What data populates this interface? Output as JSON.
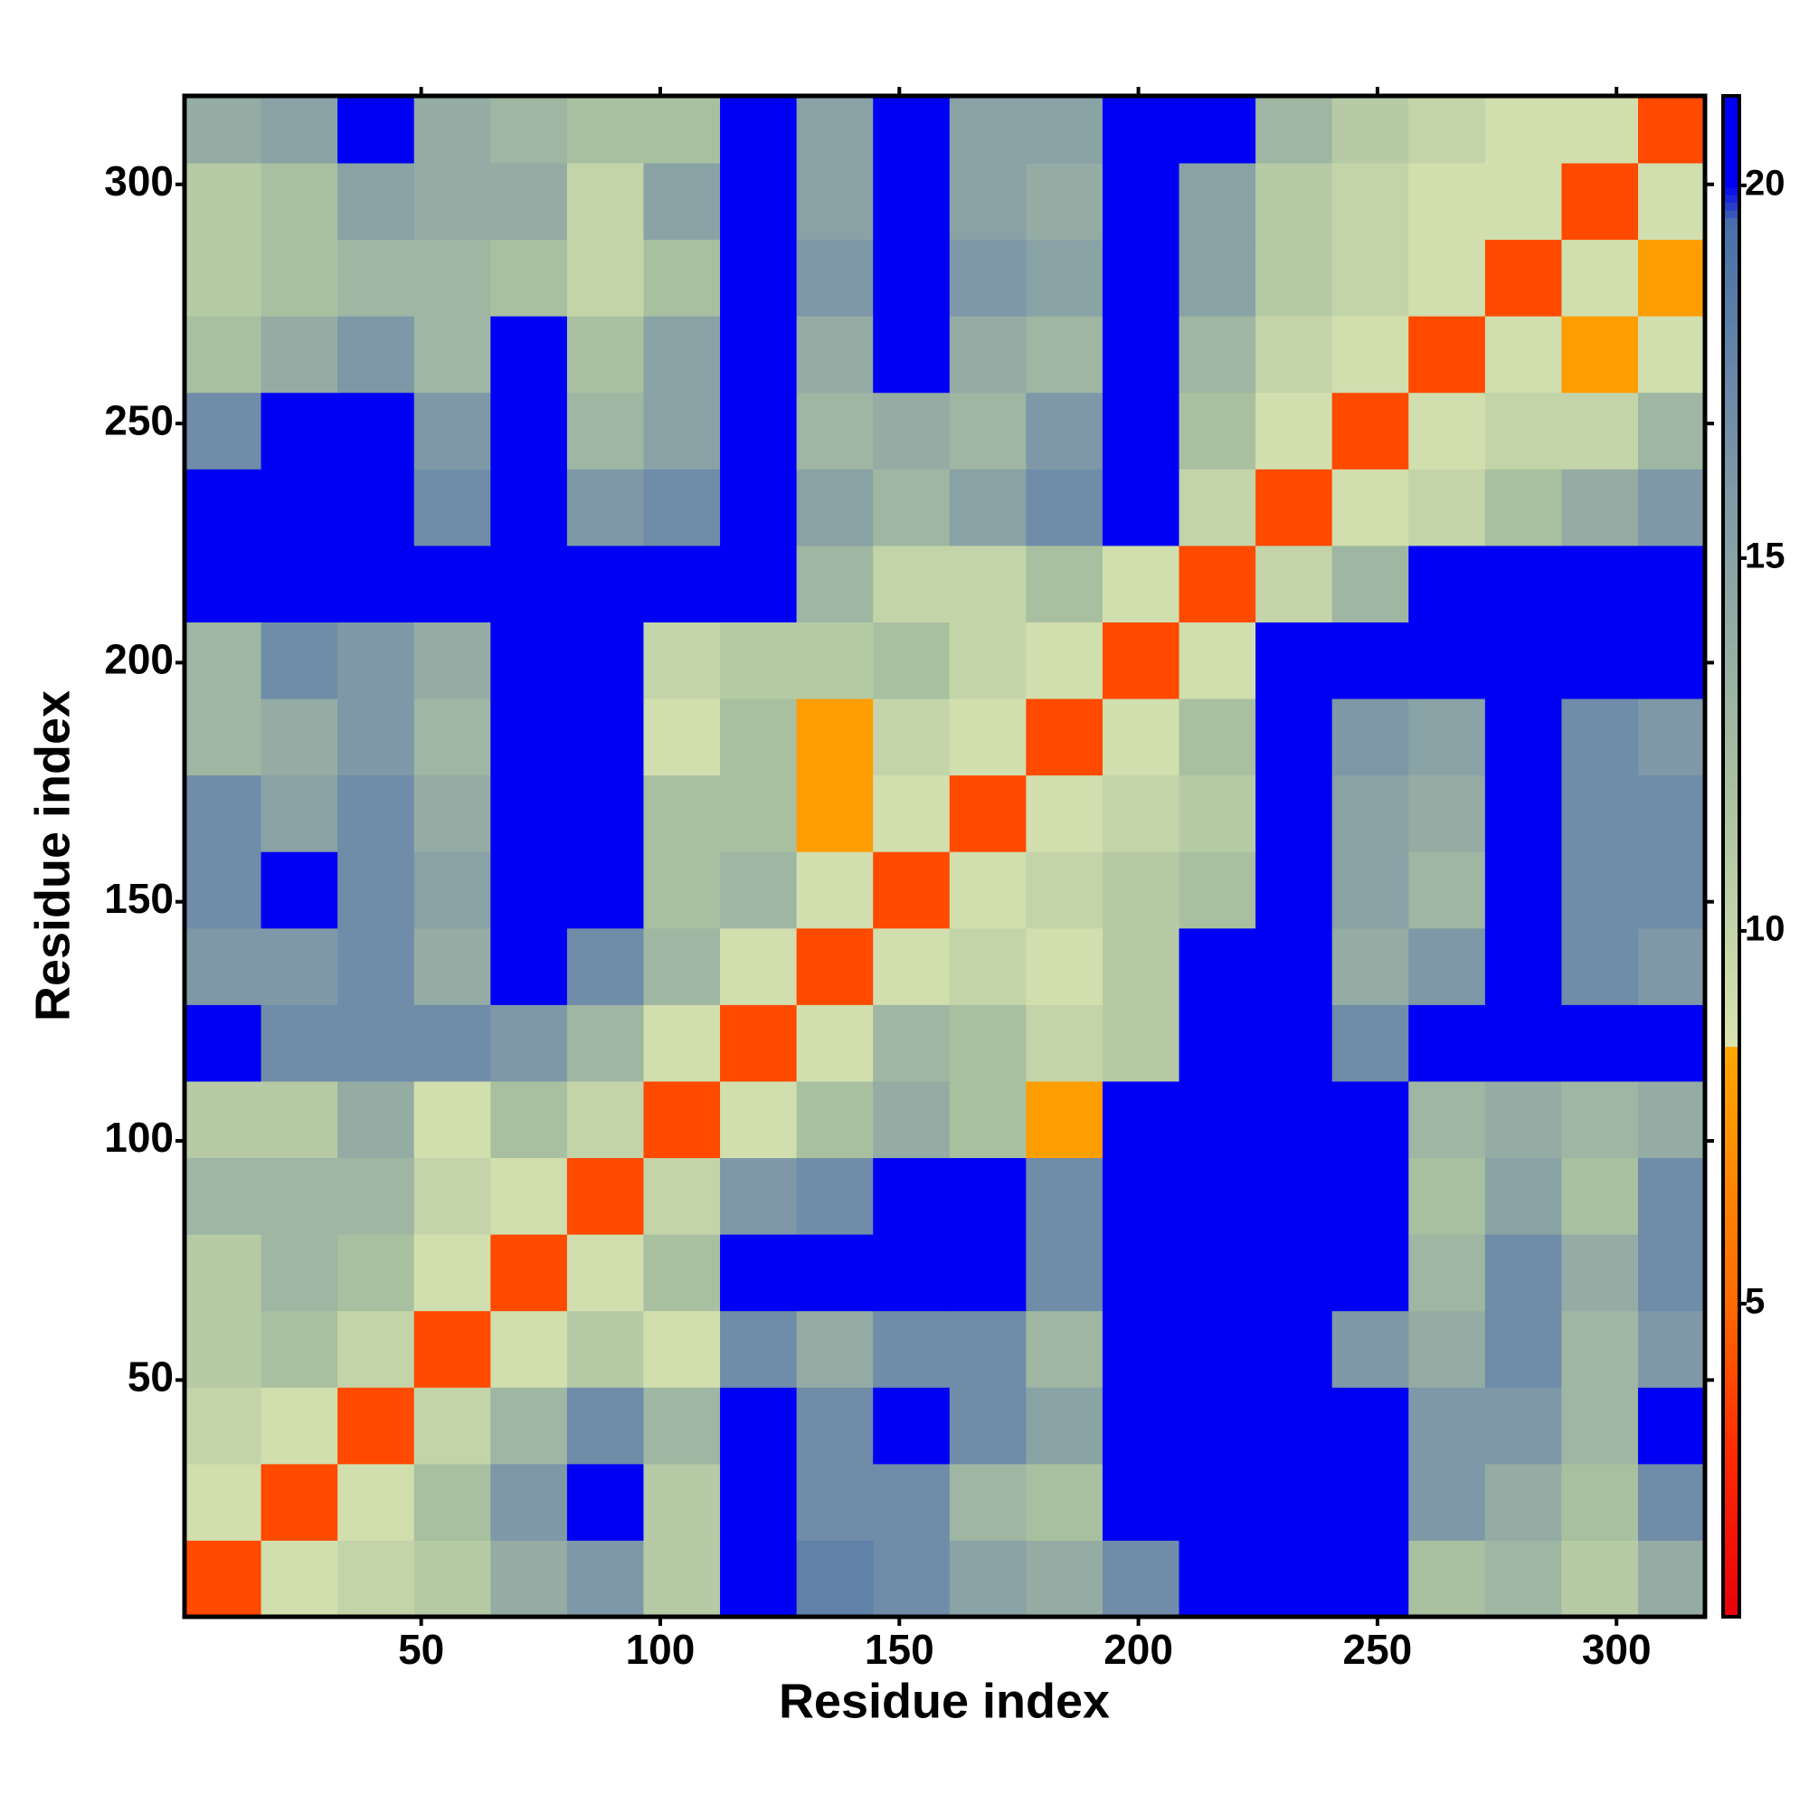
{
  "chart_data": {
    "type": "heatmap",
    "x_label": "Residue index",
    "y_label": "Residue index",
    "x_edges": [
      0.5,
      16.5,
      32.5,
      48.5,
      64.5,
      80.5,
      96.5,
      112.5,
      128.5,
      144.5,
      160.5,
      176.5,
      192.5,
      208.5,
      224.5,
      240.5,
      256.5,
      272.5,
      288.5,
      304.5,
      318.5
    ],
    "y_edges": [
      0.5,
      16.5,
      32.5,
      48.5,
      64.5,
      80.5,
      96.5,
      112.5,
      128.5,
      144.5,
      160.5,
      176.5,
      192.5,
      208.5,
      224.5,
      240.5,
      256.5,
      272.5,
      288.5,
      304.5,
      318.5
    ],
    "xlim": [
      0.5,
      318.5
    ],
    "ylim": [
      0.5,
      318.5
    ],
    "xticks": [
      50,
      100,
      150,
      200,
      250,
      300
    ],
    "yticks": [
      50,
      100,
      150,
      200,
      250,
      300
    ],
    "z": [
      [
        4,
        9,
        10,
        11,
        14,
        16,
        11,
        21,
        18,
        17,
        15,
        14,
        17,
        21,
        21,
        21,
        12,
        13,
        11,
        14
      ],
      [
        9,
        4,
        9,
        12,
        16,
        21,
        11,
        21,
        17,
        17,
        13,
        12,
        21,
        21,
        21,
        21,
        16,
        14,
        12,
        17
      ],
      [
        10,
        9,
        4,
        10,
        13,
        17,
        13,
        21,
        17,
        21,
        17,
        15,
        21,
        21,
        21,
        21,
        16,
        16,
        13,
        21
      ],
      [
        11,
        12,
        10,
        4,
        9,
        11,
        9,
        17,
        14,
        17,
        17,
        13,
        21,
        21,
        21,
        16,
        14,
        17,
        13,
        16
      ],
      [
        11,
        13,
        12,
        9,
        4,
        9,
        12,
        21,
        21,
        21,
        21,
        17,
        21,
        21,
        21,
        21,
        13,
        17,
        14,
        17
      ],
      [
        13,
        13,
        13,
        10,
        9,
        4,
        10,
        16,
        17,
        21,
        21,
        17,
        21,
        21,
        21,
        21,
        12,
        15,
        12,
        17
      ],
      [
        11,
        11,
        14,
        9,
        12,
        10,
        4,
        9,
        12,
        14,
        12,
        8,
        21,
        21,
        21,
        21,
        13,
        14,
        13,
        14
      ],
      [
        21,
        17,
        17,
        17,
        16,
        13,
        9,
        4,
        9,
        13,
        12,
        10,
        11,
        21,
        21,
        17,
        21,
        21,
        21,
        21
      ],
      [
        16,
        16,
        17,
        14,
        21,
        17,
        13,
        9,
        4,
        9,
        10,
        9,
        11,
        21,
        21,
        14,
        16,
        21,
        17,
        16
      ],
      [
        17,
        21,
        17,
        15,
        21,
        21,
        12,
        13,
        9,
        4,
        9,
        10,
        11,
        12,
        21,
        15,
        13,
        21,
        17,
        17
      ],
      [
        17,
        15,
        17,
        14,
        21,
        21,
        12,
        12,
        8,
        9,
        4,
        9,
        10,
        11,
        21,
        15,
        14,
        21,
        17,
        17
      ],
      [
        13,
        14,
        16,
        13,
        21,
        21,
        9,
        12,
        8,
        10,
        9,
        4,
        9,
        12,
        21,
        16,
        15,
        21,
        17,
        16
      ],
      [
        13,
        17,
        16,
        14,
        21,
        21,
        10,
        11,
        11,
        12,
        10,
        9,
        4,
        9,
        21,
        21,
        21,
        21,
        21,
        21
      ],
      [
        21,
        21,
        21,
        21,
        21,
        21,
        21,
        21,
        13,
        10,
        10,
        12,
        9,
        4,
        10,
        13,
        21,
        21,
        21,
        21
      ],
      [
        21,
        21,
        21,
        17,
        21,
        16,
        17,
        21,
        15,
        13,
        15,
        17,
        21,
        10,
        4,
        9,
        10,
        12,
        14,
        16
      ],
      [
        17,
        21,
        21,
        16,
        21,
        13,
        15,
        21,
        13,
        14,
        13,
        16,
        21,
        12,
        9,
        4,
        9,
        10,
        10,
        13
      ],
      [
        12,
        14,
        16,
        13,
        21,
        12,
        15,
        21,
        14,
        21,
        14,
        13,
        21,
        13,
        10,
        9,
        4,
        9,
        8,
        9
      ],
      [
        11,
        12,
        13,
        13,
        12,
        10,
        12,
        21,
        16,
        21,
        16,
        15,
        21,
        15,
        11,
        10,
        9,
        4,
        9,
        8
      ],
      [
        11,
        12,
        15,
        14,
        14,
        10,
        15,
        21,
        15,
        21,
        15,
        14,
        21,
        15,
        11,
        10,
        9,
        9,
        4,
        9
      ],
      [
        14,
        15,
        21,
        14,
        13,
        12,
        12,
        21,
        15,
        21,
        15,
        15,
        21,
        21,
        13,
        11,
        10,
        9,
        9,
        4
      ]
    ],
    "colorbar": {
      "lim": [
        0.8,
        21.2
      ],
      "ticks": [
        5,
        10,
        15,
        20
      ],
      "stops": [
        {
          "value": 0.8,
          "color": "#e8000b"
        },
        {
          "value": 3,
          "color": "#ff2a00"
        },
        {
          "value": 5,
          "color": "#ff6a00"
        },
        {
          "value": 8.4,
          "color": "#ffa500"
        },
        {
          "value": 8.5,
          "color": "#d8e3b0"
        },
        {
          "value": 12,
          "color": "#a9c0a0"
        },
        {
          "value": 16,
          "color": "#7e98a8"
        },
        {
          "value": 19.5,
          "color": "#4a6fa8"
        },
        {
          "value": 20,
          "color": "#0000f5"
        },
        {
          "value": 21.2,
          "color": "#0000f5"
        }
      ]
    }
  }
}
